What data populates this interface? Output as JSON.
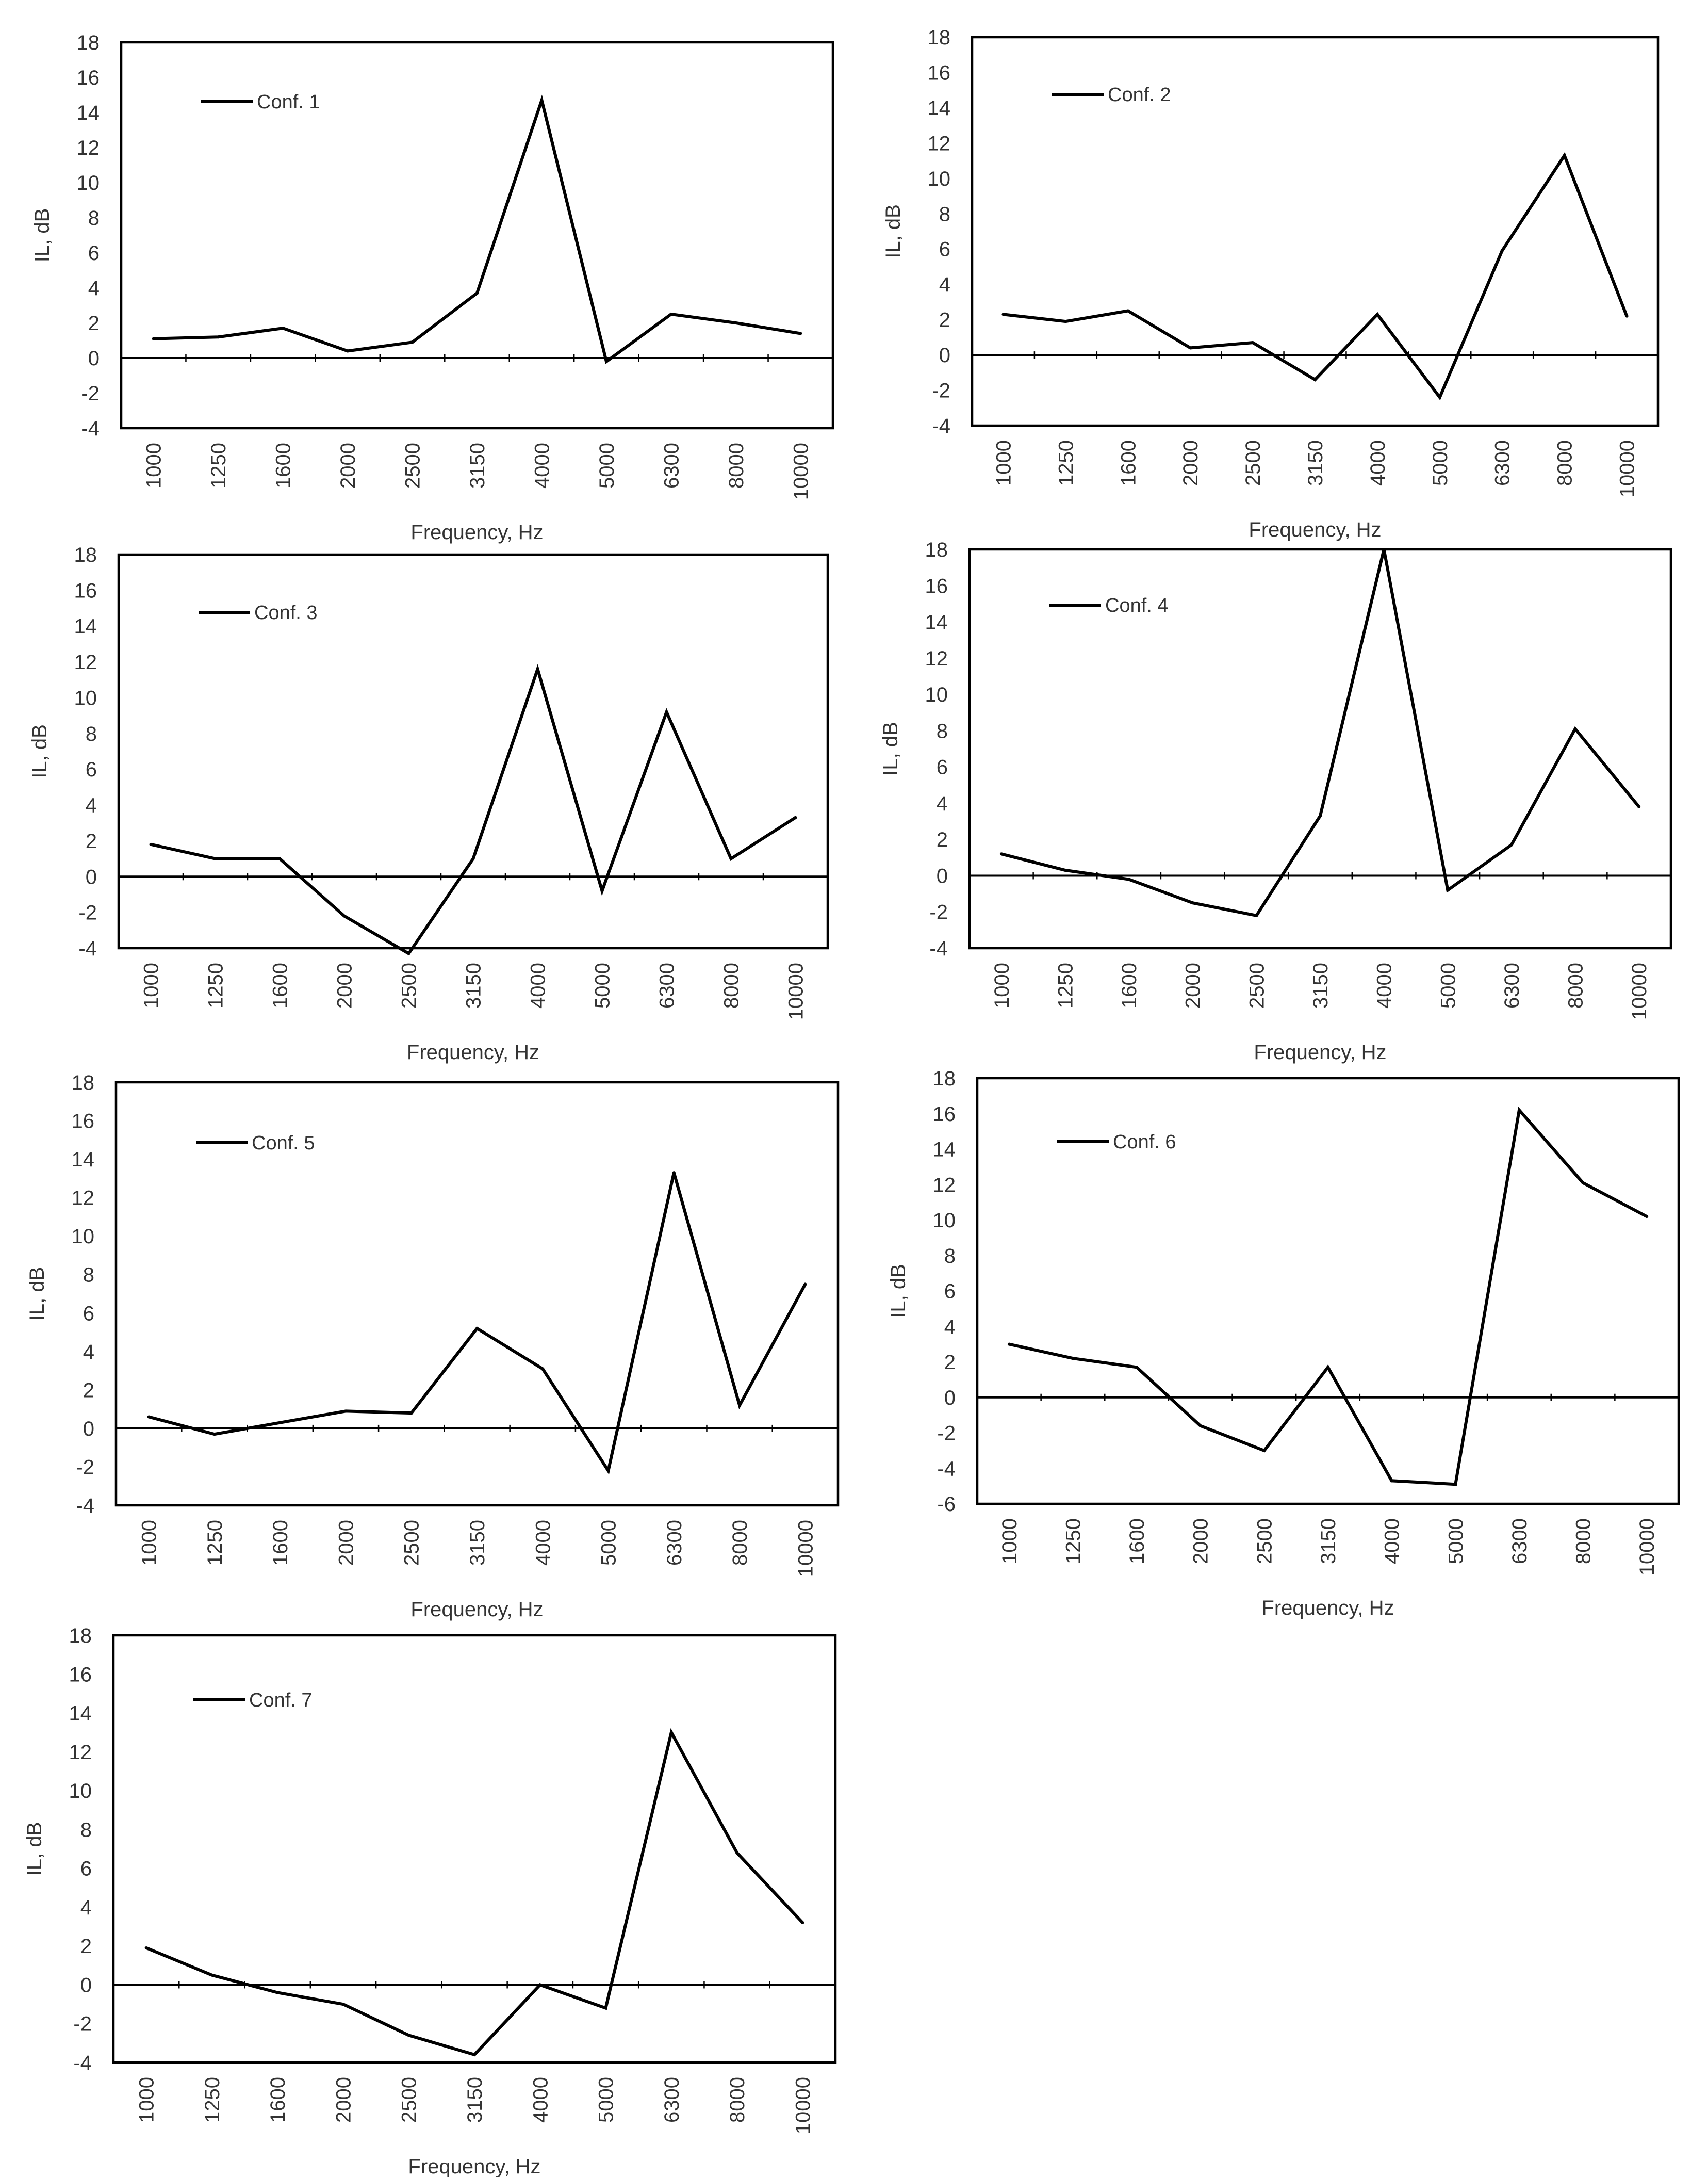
{
  "chart_data": [
    {
      "type": "line",
      "categories": [
        "1000",
        "1250",
        "1600",
        "2000",
        "2500",
        "3150",
        "4000",
        "5000",
        "6300",
        "8000",
        "10000"
      ],
      "series": [
        {
          "name": "Conf. 1",
          "values": [
            1.1,
            1.2,
            1.7,
            0.4,
            0.9,
            3.7,
            14.7,
            -0.2,
            2.5,
            2.0,
            1.4
          ]
        }
      ],
      "xlabel": "Frequency, Hz",
      "ylabel": "IL, dB",
      "ylim": [
        -4,
        18
      ],
      "yticks": [
        "-4",
        "-2",
        "0",
        "2",
        "4",
        "6",
        "8",
        "10",
        "12",
        "14",
        "16",
        "18"
      ],
      "grid": false,
      "legend_position": "top-left",
      "line_color": "#000000"
    },
    {
      "type": "line",
      "categories": [
        "1000",
        "1250",
        "1600",
        "2000",
        "2500",
        "3150",
        "4000",
        "5000",
        "6300",
        "8000",
        "10000"
      ],
      "series": [
        {
          "name": "Conf. 2",
          "values": [
            2.3,
            1.9,
            2.5,
            0.4,
            0.7,
            -1.4,
            2.3,
            -2.4,
            5.9,
            11.3,
            2.2
          ]
        }
      ],
      "xlabel": "Frequency, Hz",
      "ylabel": "IL, dB",
      "ylim": [
        -4,
        18
      ],
      "yticks": [
        "-4",
        "-2",
        "0",
        "2",
        "4",
        "6",
        "8",
        "10",
        "12",
        "14",
        "16",
        "18"
      ],
      "grid": false,
      "legend_position": "top-left",
      "line_color": "#000000"
    },
    {
      "type": "line",
      "categories": [
        "1000",
        "1250",
        "1600",
        "2000",
        "2500",
        "3150",
        "4000",
        "5000",
        "6300",
        "8000",
        "10000"
      ],
      "series": [
        {
          "name": "Conf. 3",
          "values": [
            1.8,
            1.0,
            1.0,
            -2.2,
            -4.3,
            1.0,
            11.6,
            -0.8,
            9.2,
            1.0,
            3.3
          ]
        }
      ],
      "xlabel": "Frequency, Hz",
      "ylabel": "IL, dB",
      "ylim": [
        -4,
        18
      ],
      "yticks": [
        "-4",
        "-2",
        "0",
        "2",
        "4",
        "6",
        "8",
        "10",
        "12",
        "14",
        "16",
        "18"
      ],
      "grid": false,
      "legend_position": "top-left",
      "line_color": "#000000"
    },
    {
      "type": "line",
      "categories": [
        "1000",
        "1250",
        "1600",
        "2000",
        "2500",
        "3150",
        "4000",
        "5000",
        "6300",
        "8000",
        "10000"
      ],
      "series": [
        {
          "name": "Conf. 4",
          "values": [
            1.2,
            0.3,
            -0.2,
            -1.5,
            -2.2,
            3.3,
            18.0,
            -0.8,
            1.7,
            8.1,
            3.8
          ]
        }
      ],
      "xlabel": "Frequency, Hz",
      "ylabel": "IL, dB",
      "ylim": [
        -4,
        18
      ],
      "yticks": [
        "-4",
        "-2",
        "0",
        "2",
        "4",
        "6",
        "8",
        "10",
        "12",
        "14",
        "16",
        "18"
      ],
      "grid": false,
      "legend_position": "top-left",
      "line_color": "#000000"
    },
    {
      "type": "line",
      "categories": [
        "1000",
        "1250",
        "1600",
        "2000",
        "2500",
        "3150",
        "4000",
        "5000",
        "6300",
        "8000",
        "10000"
      ],
      "series": [
        {
          "name": "Conf. 5",
          "values": [
            0.6,
            -0.3,
            0.3,
            0.9,
            0.8,
            5.2,
            3.1,
            -2.2,
            13.3,
            1.2,
            7.5
          ]
        }
      ],
      "xlabel": "Frequency, Hz",
      "ylabel": "IL, dB",
      "ylim": [
        -4,
        18
      ],
      "yticks": [
        "-4",
        "-2",
        "0",
        "2",
        "4",
        "6",
        "8",
        "10",
        "12",
        "14",
        "16",
        "18"
      ],
      "grid": false,
      "legend_position": "top-left",
      "line_color": "#000000"
    },
    {
      "type": "line",
      "categories": [
        "1000",
        "1250",
        "1600",
        "2000",
        "2500",
        "3150",
        "4000",
        "5000",
        "6300",
        "8000",
        "10000"
      ],
      "series": [
        {
          "name": "Conf. 6",
          "values": [
            3.0,
            2.2,
            1.7,
            -1.6,
            -3.0,
            1.7,
            -4.7,
            -4.9,
            16.2,
            12.1,
            10.2
          ]
        }
      ],
      "xlabel": "Frequency, Hz",
      "ylabel": "IL, dB",
      "ylim": [
        -6,
        18
      ],
      "yticks": [
        "-6",
        "-4",
        "-2",
        "0",
        "2",
        "4",
        "6",
        "8",
        "10",
        "12",
        "14",
        "16",
        "18"
      ],
      "grid": false,
      "legend_position": "top-left",
      "line_color": "#000000"
    },
    {
      "type": "line",
      "categories": [
        "1000",
        "1250",
        "1600",
        "2000",
        "2500",
        "3150",
        "4000",
        "5000",
        "6300",
        "8000",
        "10000"
      ],
      "series": [
        {
          "name": "Conf. 7",
          "values": [
            1.9,
            0.5,
            -0.4,
            -1.0,
            -2.6,
            -3.6,
            0.0,
            -1.2,
            13.0,
            6.8,
            3.2
          ]
        }
      ],
      "xlabel": "Frequency, Hz",
      "ylabel": "IL, dB",
      "ylim": [
        -4,
        18
      ],
      "yticks": [
        "-4",
        "-2",
        "0",
        "2",
        "4",
        "6",
        "8",
        "10",
        "12",
        "14",
        "16",
        "18"
      ],
      "grid": false,
      "legend_position": "top-left",
      "line_color": "#000000"
    }
  ]
}
